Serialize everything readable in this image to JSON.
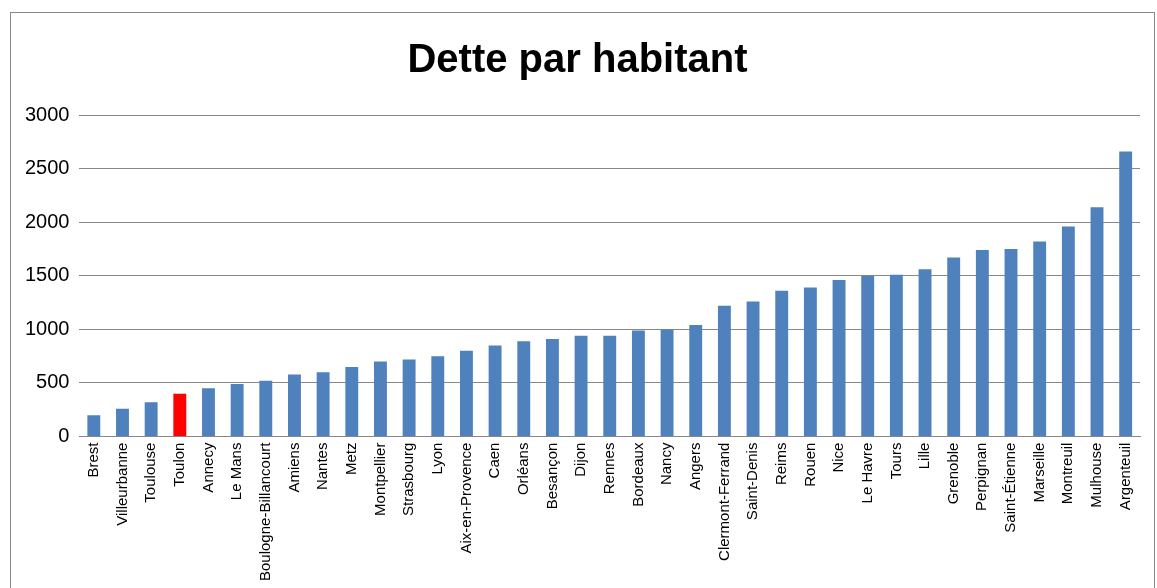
{
  "chart_data": {
    "type": "bar",
    "title": "Dette par habitant",
    "categories": [
      "Brest",
      "Villeurbanne",
      "Toulouse",
      "Toulon",
      "Annecy",
      "Le Mans",
      "Boulogne-Billancourt",
      "Amiens",
      "Nantes",
      "Metz",
      "Montpellier",
      "Strasbourg",
      "Lyon",
      "Aix-en-Provence",
      "Caen",
      "Orléans",
      "Besançon",
      "Dijon",
      "Rennes",
      "Bordeaux",
      "Nancy",
      "Angers",
      "Clermont-Ferrand",
      "Saint-Denis",
      "Reims",
      "Rouen",
      "Nice",
      "Le Havre",
      "Tours",
      "Lille",
      "Grenoble",
      "Perpignan",
      "Saint-Étienne",
      "Marseille",
      "Montreuil",
      "Mulhouse",
      "Argenteuil"
    ],
    "values": [
      200,
      260,
      320,
      400,
      450,
      490,
      520,
      580,
      600,
      650,
      700,
      720,
      750,
      800,
      850,
      890,
      910,
      940,
      940,
      990,
      1000,
      1040,
      1220,
      1260,
      1360,
      1390,
      1460,
      1500,
      1510,
      1560,
      1670,
      1740,
      1750,
      1820,
      1960,
      2140,
      2660
    ],
    "colors": [
      "#4f81bd",
      "#4f81bd",
      "#4f81bd",
      "#ff0000",
      "#4f81bd",
      "#4f81bd",
      "#4f81bd",
      "#4f81bd",
      "#4f81bd",
      "#4f81bd",
      "#4f81bd",
      "#4f81bd",
      "#4f81bd",
      "#4f81bd",
      "#4f81bd",
      "#4f81bd",
      "#4f81bd",
      "#4f81bd",
      "#4f81bd",
      "#4f81bd",
      "#4f81bd",
      "#4f81bd",
      "#4f81bd",
      "#4f81bd",
      "#4f81bd",
      "#4f81bd",
      "#4f81bd",
      "#4f81bd",
      "#4f81bd",
      "#4f81bd",
      "#4f81bd",
      "#4f81bd",
      "#4f81bd",
      "#4f81bd",
      "#4f81bd",
      "#4f81bd",
      "#4f81bd"
    ],
    "ylim": [
      0,
      3000
    ],
    "yticks": [
      0,
      500,
      1000,
      1500,
      2000,
      2500,
      3000
    ],
    "grid": "y",
    "legend": false
  }
}
